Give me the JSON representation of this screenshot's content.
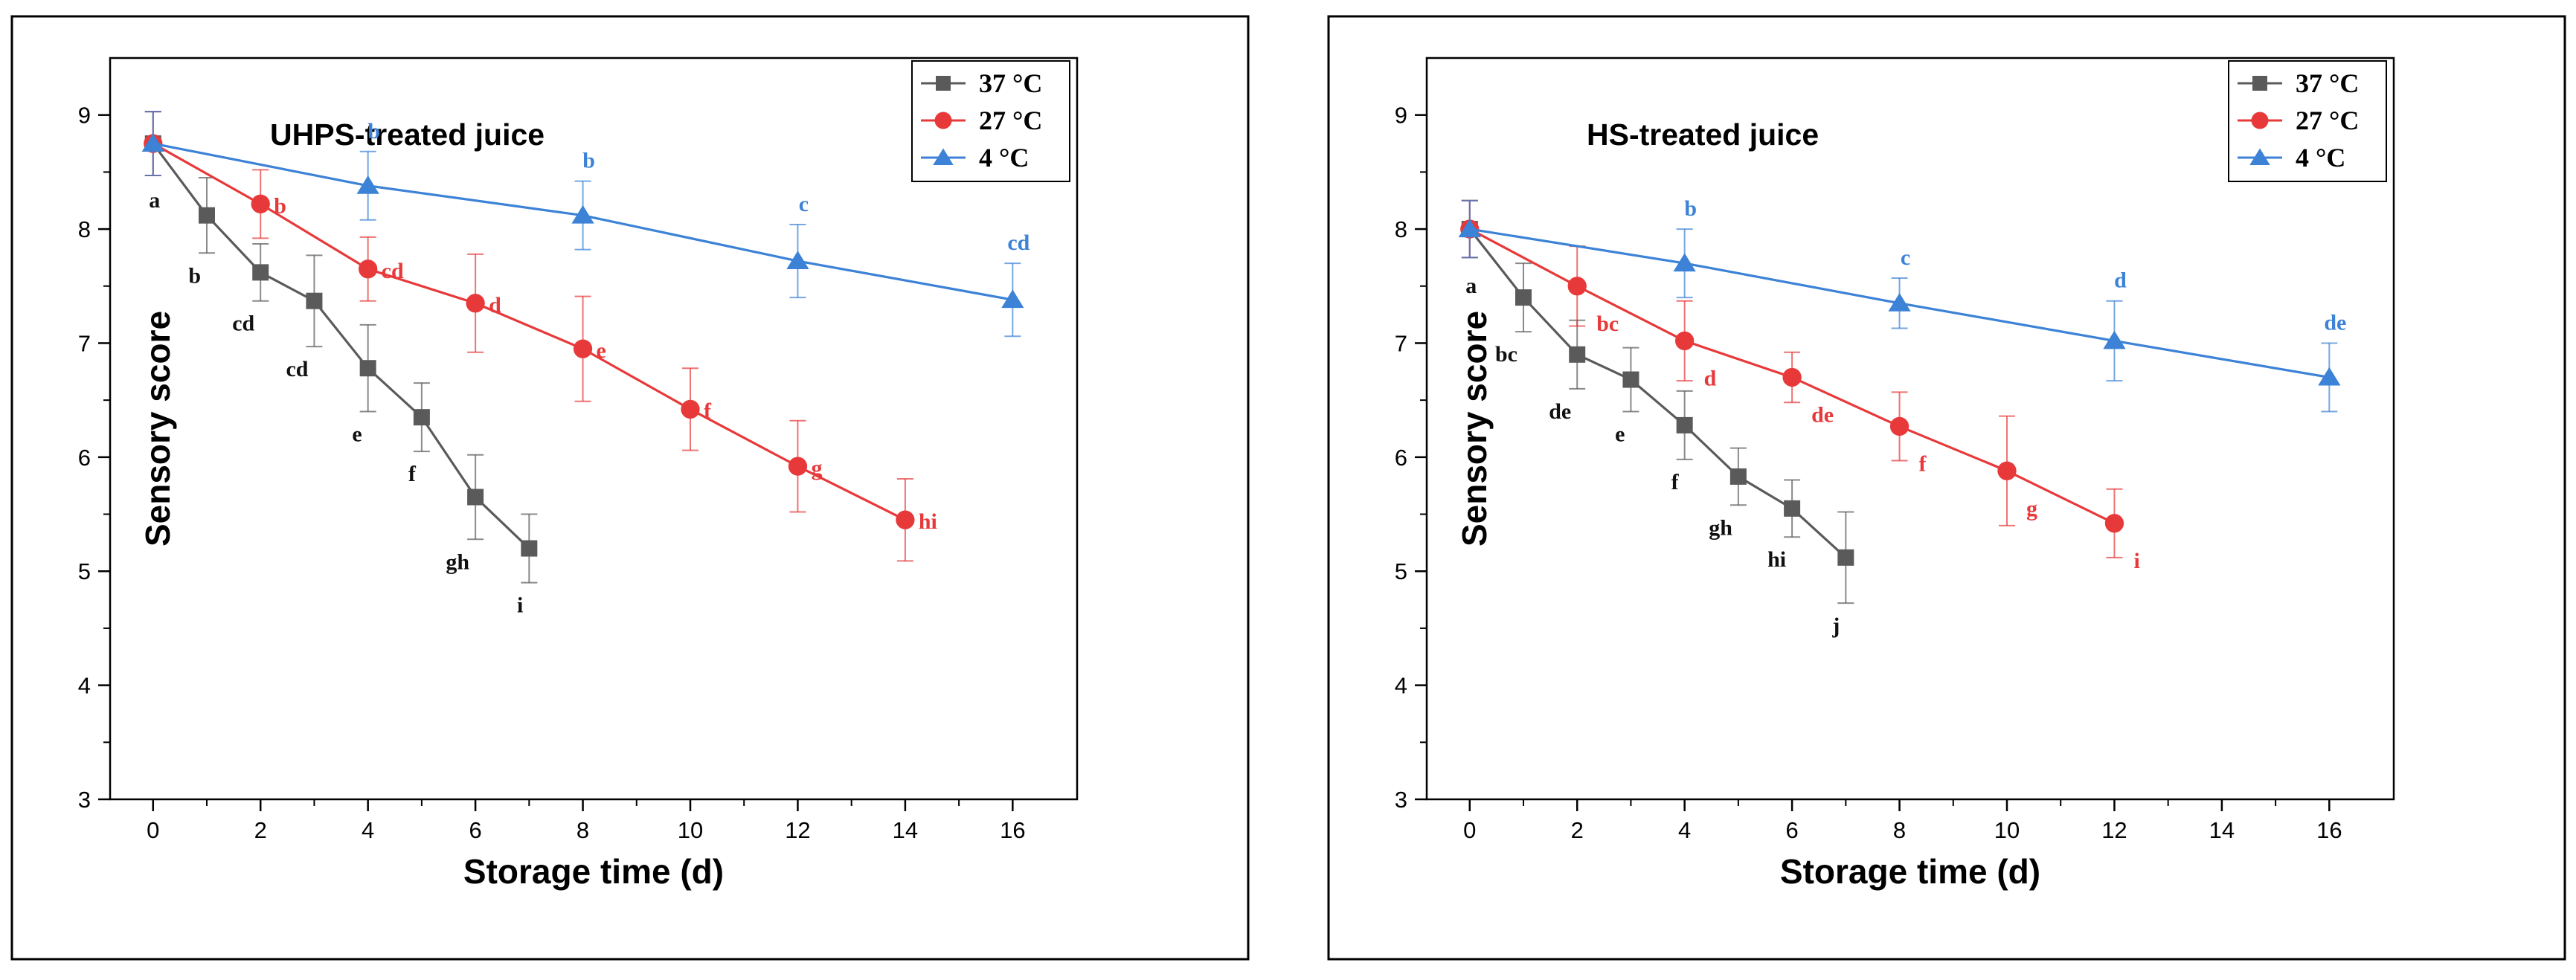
{
  "chart_data": [
    {
      "type": "line",
      "title": "UHPS-treated juice",
      "xlabel": "Storage time (d)",
      "ylabel": "Sensory score",
      "xlim": [
        -0.8,
        17.2
      ],
      "ylim": [
        3,
        9.5
      ],
      "xticks": [
        0,
        2,
        4,
        6,
        8,
        10,
        12,
        14,
        16
      ],
      "yticks": [
        3,
        4,
        5,
        6,
        7,
        8,
        9
      ],
      "legend_position": "top-right",
      "series": [
        {
          "name": "37 °C",
          "color": "#5a5a5a",
          "marker": "square",
          "x": [
            0,
            1,
            2,
            3,
            4,
            5,
            6,
            7
          ],
          "y": [
            8.75,
            8.12,
            7.62,
            7.37,
            6.78,
            6.35,
            5.65,
            5.2
          ],
          "err": [
            0.28,
            0.33,
            0.25,
            0.4,
            0.38,
            0.3,
            0.37,
            0.3
          ],
          "labels": [
            "a",
            "b",
            "cd",
            "cd",
            "e",
            "f",
            "gh",
            "i"
          ]
        },
        {
          "name": "27 °C",
          "color": "#e8393a",
          "marker": "circle",
          "x": [
            0,
            2,
            4,
            6,
            8,
            10,
            12,
            14
          ],
          "y": [
            8.75,
            8.22,
            7.65,
            7.35,
            6.95,
            6.42,
            5.92,
            5.45
          ],
          "err": [
            0.28,
            0.3,
            0.28,
            0.43,
            0.46,
            0.36,
            0.4,
            0.36
          ],
          "labels": [
            "",
            "b",
            "cd",
            "d",
            "e",
            "f",
            "g",
            "hi"
          ]
        },
        {
          "name": "4 °C",
          "color": "#3c82d6",
          "marker": "triangle",
          "x": [
            0,
            4,
            8,
            12,
            16
          ],
          "y": [
            8.75,
            8.38,
            8.12,
            7.72,
            7.38
          ],
          "err": [
            0.28,
            0.3,
            0.3,
            0.32,
            0.32
          ],
          "labels": [
            "",
            "b",
            "b",
            "c",
            "cd"
          ]
        }
      ]
    },
    {
      "type": "line",
      "title": "HS-treated juice",
      "xlabel": "Storage time (d)",
      "ylabel": "Sensory score",
      "xlim": [
        -0.8,
        17.2
      ],
      "ylim": [
        3,
        9.5
      ],
      "xticks": [
        0,
        2,
        4,
        6,
        8,
        10,
        12,
        14,
        16
      ],
      "yticks": [
        3,
        4,
        5,
        6,
        7,
        8,
        9
      ],
      "legend_position": "top-right",
      "series": [
        {
          "name": "37 °C",
          "color": "#5a5a5a",
          "marker": "square",
          "x": [
            0,
            1,
            2,
            3,
            4,
            5,
            6,
            7
          ],
          "y": [
            8.0,
            7.4,
            6.9,
            6.68,
            6.28,
            5.83,
            5.55,
            5.12
          ],
          "err": [
            0.25,
            0.3,
            0.3,
            0.28,
            0.3,
            0.25,
            0.25,
            0.4
          ],
          "labels": [
            "a",
            "bc",
            "de",
            "e",
            "f",
            "gh",
            "hi",
            "j"
          ]
        },
        {
          "name": "27 °C",
          "color": "#e8393a",
          "marker": "circle",
          "x": [
            0,
            2,
            4,
            6,
            8,
            10,
            12
          ],
          "y": [
            8.0,
            7.5,
            7.02,
            6.7,
            6.27,
            5.88,
            5.42
          ],
          "err": [
            0.25,
            0.35,
            0.35,
            0.22,
            0.3,
            0.48,
            0.3
          ],
          "labels": [
            "",
            "bc",
            "d",
            "de",
            "f",
            "g",
            "i"
          ]
        },
        {
          "name": "4 °C",
          "color": "#3c82d6",
          "marker": "triangle",
          "x": [
            0,
            4,
            8,
            12,
            16
          ],
          "y": [
            8.0,
            7.7,
            7.35,
            7.02,
            6.7
          ],
          "err": [
            0.25,
            0.3,
            0.22,
            0.35,
            0.3
          ],
          "labels": [
            "",
            "b",
            "c",
            "d",
            "de"
          ]
        }
      ]
    }
  ]
}
